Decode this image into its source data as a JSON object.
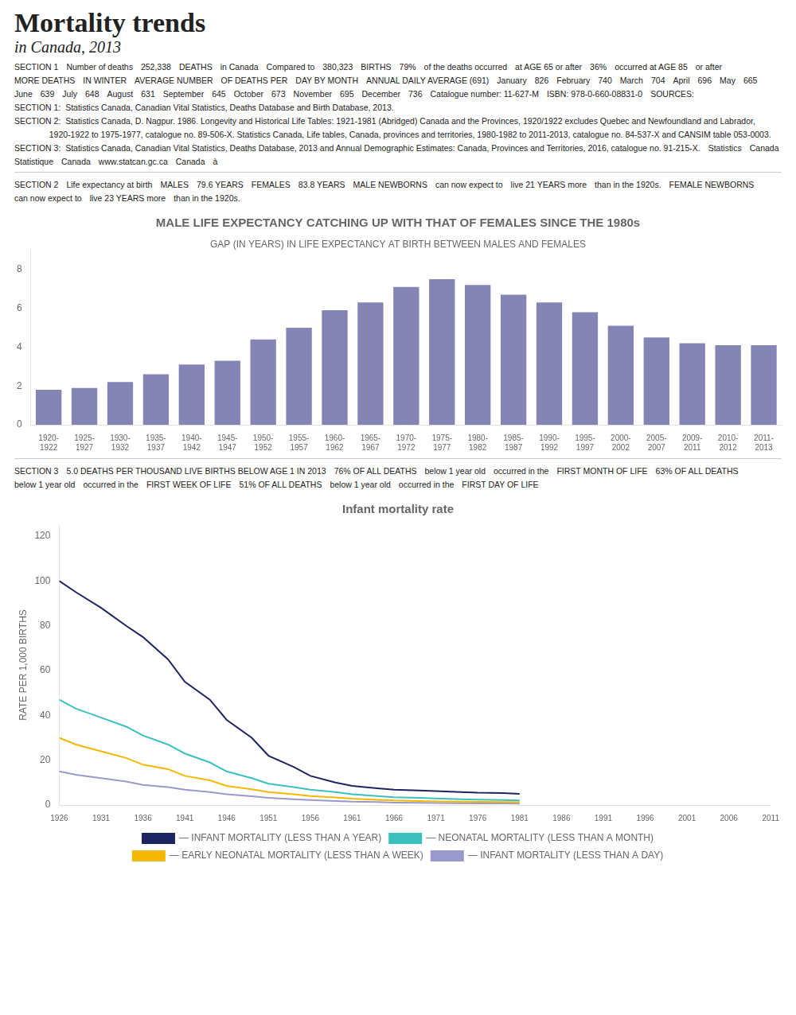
{
  "title": "Mortality trends",
  "subtitle": "in Canada, 2013",
  "annotations": [
    "SECTION 1",
    "Number of deaths",
    "252,338",
    "DEATHS",
    "in Canada",
    "Compared to",
    "380,323",
    "BIRTHS",
    "79%",
    "of the deaths occurred",
    "at AGE 65 or after",
    "36%",
    "occurred at AGE 85",
    "or after",
    "MORE DEATHS",
    "IN WINTER",
    "AVERAGE NUMBER",
    "OF DEATHS PER",
    "DAY BY MONTH",
    "ANNUAL DAILY AVERAGE (691)",
    "January",
    "826",
    "February",
    "740",
    "March",
    "704",
    "April",
    "696",
    "May",
    "665",
    "June",
    "639",
    "July",
    "648",
    "August",
    "631",
    "September",
    "645",
    "October",
    "673",
    "November",
    "695",
    "December",
    "736",
    "Catalogue number: 11-627-M",
    "ISBN: 978-0-660-08831-0",
    "SOURCES:",
    "SECTION 1:  Statistics Canada, Canadian Vital Statistics, Deaths Database and Birth Database, 2013.",
    "SECTION 2:  Statistics Canada, D. Nagpur. 1986. Longevity and Historical Life Tables: 1921-1981 (Abridged) Canada and the Provinces, 1920/1922 excludes Quebec and Newfoundland and Labrador,",
    "               1920-1922 to 1975-1977, catalogue no. 89-506-X. Statistics Canada, Life tables, Canada, provinces and territories, 1980-1982 to 2011-2013, catalogue no. 84-537-X and CANSIM table 053-0003.",
    "SECTION 3:  Statistics Canada, Canadian Vital Statistics, Deaths Database, 2013 and Annual Demographic Estimates: Canada, Provinces and Territories, 2016, catalogue no. 91-215-X.",
    "Statistics",
    "Canada",
    "Statistique",
    "Canada",
    "www.statcan.gc.ca",
    "Canada",
    "à"
  ],
  "chart_data": [
    {
      "type": "bar",
      "annotations": [
        "SECTION 2",
        "Life expectancy at birth",
        "MALES",
        "79.6 YEARS",
        "FEMALES",
        "83.8 YEARS",
        "MALE NEWBORNS",
        "can now expect to",
        "live 21 YEARS more",
        "than in the 1920s.",
        "FEMALE NEWBORNS",
        "can now expect to",
        "live 23 YEARS more",
        "than in the 1920s."
      ],
      "title": "MALE LIFE EXPECTANCY CATCHING UP WITH THAT OF FEMALES SINCE THE 1980s",
      "subtitle": "GAP (IN YEARS) IN LIFE EXPECTANCY AT BIRTH BETWEEN MALES AND FEMALES",
      "categories": [
        "1920-\n1922",
        "1925-\n1927",
        "1930-\n1932",
        "1935-\n1937",
        "1940-\n1942",
        "1945-\n1947",
        "1950-\n1952",
        "1955-\n1957",
        "1960-\n1962",
        "1965-\n1967",
        "1970-\n1972",
        "1975-\n1977",
        "1980-\n1982",
        "1985-\n1987",
        "1990-\n1992",
        "1995-\n1997",
        "2000-\n2002",
        "2005-\n2007",
        "2009-\n2011",
        "2010-\n2012",
        "2011-\n2013"
      ],
      "values": [
        1.8,
        1.9,
        2.2,
        2.6,
        3.1,
        3.3,
        4.4,
        5.0,
        5.9,
        6.3,
        7.1,
        7.5,
        7.2,
        6.7,
        6.3,
        5.8,
        5.1,
        4.5,
        4.2,
        4.1,
        4.1
      ],
      "color": "#8585B5",
      "ylim": [
        0,
        9
      ],
      "yticks": [
        0,
        2,
        4,
        6,
        8
      ],
      "grid": false
    },
    {
      "type": "line",
      "title": "Infant mortality rate",
      "annotations": [
        "SECTION 3",
        "5.0 DEATHS PER THOUSAND LIVE BIRTHS BELOW AGE 1 IN 2013",
        "76% OF ALL DEATHS",
        "below 1 year old",
        "occurred in the",
        "FIRST MONTH OF LIFE",
        "63% OF ALL DEATHS",
        "below 1 year old",
        "occurred in the",
        "FIRST WEEK OF LIFE",
        "51% OF ALL DEATHS",
        "below 1 year old",
        "occurred in the",
        "FIRST DAY OF LIFE"
      ],
      "y_label": "RATE PER 1,000 BIRTHS",
      "x": [
        1926,
        1928,
        1931,
        1934,
        1936,
        1939,
        1941,
        1944,
        1946,
        1949,
        1951,
        1954,
        1956,
        1959,
        1961,
        1964,
        1966,
        1969,
        1971,
        1974,
        1976,
        1979,
        1981
      ],
      "series": [
        {
          "name": "— INFANT MORTALITY (LESS THAN A YEAR)",
          "color": "#1C2461",
          "values": [
            100,
            95,
            88,
            80,
            75,
            65,
            55,
            47,
            38,
            30,
            22,
            17,
            13,
            10,
            8.5,
            7.5,
            6.8,
            6.5,
            6.2,
            5.8,
            5.5,
            5.3,
            5.0
          ]
        },
        {
          "name": "— NEONATAL MORTALITY (LESS THAN A MONTH)",
          "color": "#3BBFBF",
          "values": [
            47,
            43,
            39,
            35,
            31,
            27,
            23,
            19,
            15,
            12,
            9.5,
            8,
            6.8,
            5.8,
            4.8,
            4.0,
            3.5,
            3.2,
            2.9,
            2.6,
            2.4,
            2.2,
            2.0
          ]
        },
        {
          "name": "— EARLY NEONATAL MORTALITY (LESS THAN A WEEK)",
          "color": "#F5B800",
          "values": [
            30,
            27,
            24,
            21,
            18,
            16,
            13,
            11,
            8.5,
            7,
            5.8,
            4.8,
            4.0,
            3.4,
            2.8,
            2.3,
            2.0,
            1.8,
            1.6,
            1.5,
            1.4,
            1.3,
            1.2
          ]
        },
        {
          "name": "— INFANT MORTALITY (LESS THAN A DAY)",
          "color": "#9999CC",
          "values": [
            15,
            13.5,
            12,
            10.5,
            9,
            8,
            6.8,
            5.8,
            4.8,
            3.9,
            3.2,
            2.6,
            2.2,
            1.8,
            1.5,
            1.3,
            1.1,
            1.0,
            0.9,
            0.8,
            0.75,
            0.7,
            0.65
          ]
        }
      ],
      "xlim": [
        1926,
        2011
      ],
      "xticks": [
        1926,
        1931,
        1936,
        1941,
        1946,
        1951,
        1956,
        1961,
        1966,
        1971,
        1976,
        1981,
        1986,
        1991,
        1996,
        2001,
        2006,
        2011
      ],
      "ylim": [
        0,
        125
      ],
      "yticks": [
        0,
        20,
        40,
        60,
        80,
        100,
        120
      ],
      "grid": false,
      "legend": "bottom"
    }
  ]
}
